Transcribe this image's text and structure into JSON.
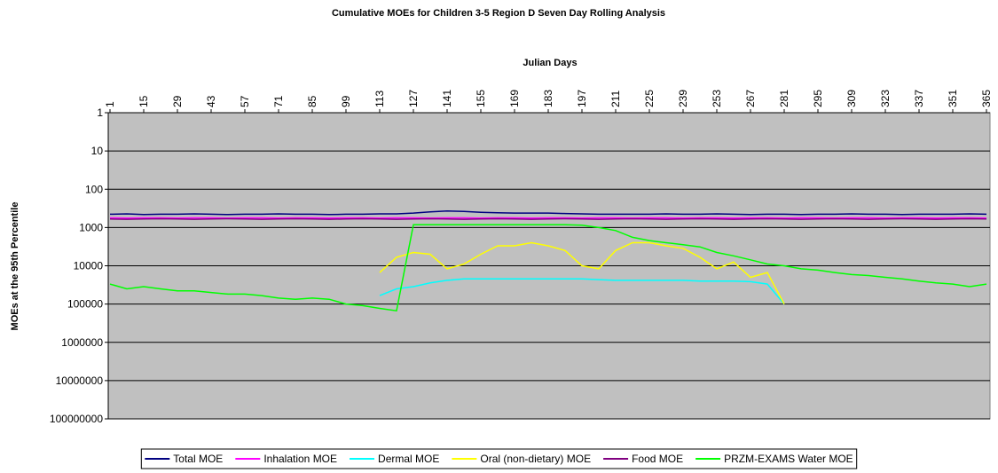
{
  "chart_data": {
    "type": "line",
    "title": "Cumulative MOEs for Children 3-5 Region D Seven Day Rolling Analysis",
    "x_label": "Julian Days",
    "y_label": "MOEs at the 95th Percentile",
    "x": [
      1,
      8,
      15,
      22,
      29,
      36,
      43,
      50,
      57,
      64,
      71,
      78,
      85,
      92,
      99,
      106,
      113,
      120,
      127,
      134,
      141,
      148,
      155,
      162,
      169,
      176,
      183,
      190,
      197,
      204,
      211,
      218,
      225,
      232,
      239,
      246,
      253,
      260,
      267,
      274,
      281,
      288,
      295,
      302,
      309,
      316,
      323,
      330,
      337,
      344,
      351,
      358,
      365
    ],
    "xlim": [
      1,
      365
    ],
    "xticks": [
      1,
      15,
      29,
      43,
      57,
      71,
      85,
      99,
      113,
      127,
      141,
      155,
      169,
      183,
      197,
      211,
      225,
      239,
      253,
      267,
      281,
      295,
      309,
      323,
      337,
      351,
      365
    ],
    "ylim": [
      1,
      100000000
    ],
    "yticks": [
      1,
      10,
      100,
      1000,
      10000,
      100000,
      1000000,
      10000000,
      100000000
    ],
    "log_scale": true,
    "y_reversed": true,
    "grid": true,
    "legend_position": "bottom",
    "series": [
      {
        "name": "Total MOE",
        "color": "#000080",
        "values": [
          450,
          440,
          460,
          450,
          450,
          440,
          450,
          460,
          450,
          450,
          440,
          450,
          450,
          460,
          450,
          450,
          440,
          440,
          420,
          390,
          370,
          380,
          400,
          410,
          420,
          420,
          420,
          430,
          440,
          450,
          450,
          450,
          450,
          440,
          450,
          450,
          440,
          450,
          460,
          450,
          450,
          460,
          450,
          450,
          440,
          450,
          450,
          460,
          450,
          450,
          450,
          440,
          450
        ]
      },
      {
        "name": "Inhalation MOE",
        "color": "#ff00ff",
        "values": [
          560,
          570,
          560,
          560,
          570,
          560,
          560,
          570,
          560,
          560,
          570,
          560,
          560,
          570,
          560,
          560,
          570,
          560,
          560,
          570,
          560,
          560,
          570,
          560,
          560,
          570,
          560,
          560,
          570,
          560,
          560,
          570,
          560,
          560,
          570,
          560,
          560,
          570,
          560,
          560,
          570,
          560,
          560,
          570,
          560,
          560,
          570,
          560,
          560,
          570,
          560,
          560,
          570
        ]
      },
      {
        "name": "Dermal MOE",
        "color": "#00ffff",
        "values": [
          null,
          null,
          null,
          null,
          null,
          null,
          null,
          null,
          null,
          null,
          null,
          null,
          null,
          null,
          null,
          null,
          60000,
          40000,
          35000,
          28000,
          24000,
          22000,
          22000,
          22000,
          22000,
          22000,
          22000,
          22000,
          22000,
          23000,
          24000,
          24000,
          24000,
          24000,
          24000,
          25000,
          25000,
          25000,
          26000,
          30000,
          100000,
          null,
          null,
          null,
          null,
          null,
          null,
          null,
          null,
          null,
          null,
          null,
          null
        ]
      },
      {
        "name": "Oral (non-dietary) MOE",
        "color": "#ffff00",
        "values": [
          null,
          null,
          null,
          null,
          null,
          null,
          null,
          null,
          null,
          null,
          null,
          null,
          null,
          null,
          null,
          null,
          15000,
          6000,
          4500,
          5000,
          12000,
          9000,
          5000,
          3000,
          3000,
          2500,
          3000,
          4000,
          10000,
          12000,
          4000,
          2500,
          2500,
          3000,
          3500,
          6000,
          12000,
          8000,
          20000,
          15000,
          100000,
          null,
          null,
          null,
          null,
          null,
          null,
          null,
          null,
          null,
          null,
          null,
          null
        ]
      },
      {
        "name": "Food MOE",
        "color": "#800080",
        "values": [
          600,
          610,
          600,
          590,
          600,
          610,
          600,
          590,
          600,
          610,
          600,
          590,
          600,
          610,
          600,
          590,
          600,
          610,
          600,
          590,
          600,
          610,
          600,
          590,
          600,
          610,
          600,
          590,
          600,
          610,
          600,
          590,
          600,
          610,
          600,
          590,
          600,
          610,
          600,
          590,
          600,
          610,
          600,
          590,
          600,
          610,
          600,
          590,
          600,
          610,
          600,
          590,
          600
        ]
      },
      {
        "name": "PRZM-EXAMS Water MOE",
        "color": "#00ff00",
        "values": [
          30000,
          40000,
          35000,
          40000,
          45000,
          45000,
          50000,
          55000,
          55000,
          60000,
          70000,
          75000,
          70000,
          75000,
          100000,
          110000,
          130000,
          150000,
          850,
          850,
          850,
          850,
          850,
          850,
          850,
          850,
          850,
          850,
          870,
          1000,
          1200,
          1800,
          2200,
          2500,
          2800,
          3200,
          4500,
          5500,
          7000,
          9000,
          10000,
          12000,
          13000,
          15000,
          17000,
          18000,
          20000,
          22000,
          25000,
          28000,
          30000,
          35000,
          30000
        ]
      }
    ]
  }
}
